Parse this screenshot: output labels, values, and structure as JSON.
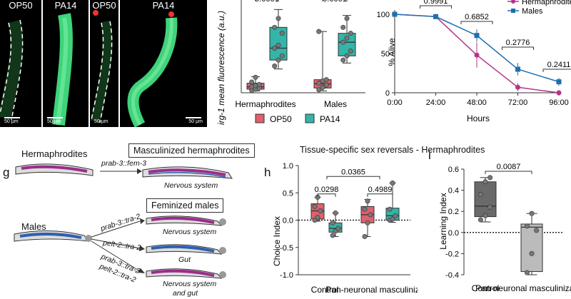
{
  "micrographs": {
    "tiles": [
      {
        "label": "OP50",
        "scale": "50 µm"
      },
      {
        "label": "PA14",
        "scale": "50 µm"
      },
      {
        "label": "OP50",
        "scale": "50 µm"
      },
      {
        "label": "PA14",
        "scale": "50 µm"
      }
    ]
  },
  "panel_g": {
    "letter": "g",
    "hermaphrodites": "Hermaphrodites",
    "masc_box": "Masculinized hermaphrodites",
    "arrow1": "prab-3::fem-3",
    "nervous_system": "Nervous system",
    "males": "Males",
    "fem_box": "Feminized males",
    "arrow2": "prab-3::tra-2",
    "arrow3": "pelt-2::tra-2",
    "arrow4a": "prab-3::tra-2",
    "arrow4b": "pelt-2::tra-2",
    "out2": "Nervous system",
    "out3": "Gut",
    "out4a": "Nervous system",
    "out4b": "and gut"
  },
  "panel_h_letter": "h",
  "panel_h_title": "Tissue-specific sex reversals - Hermaphrodites",
  "panel_i_letter": "i",
  "chart_data": [
    {
      "type": "box",
      "ylabel": "irg-1 mean fluorescence (a.u.)",
      "categories": [
        "Hermaphrodites",
        "Males"
      ],
      "legend": [
        "OP50",
        "PA14"
      ],
      "colors": [
        "#e0606e",
        "#33b5a8"
      ],
      "boxes": [
        {
          "cat": 0,
          "series": 0,
          "min": 3,
          "q1": 6,
          "med": 10,
          "q3": 16,
          "max": 27,
          "points": [
            4,
            6,
            8,
            10,
            12,
            14,
            18,
            26
          ]
        },
        {
          "cat": 0,
          "series": 1,
          "min": 40,
          "q1": 55,
          "med": 75,
          "q3": 110,
          "max": 140,
          "points": [
            45,
            55,
            62,
            75,
            80,
            100,
            110,
            125
          ]
        },
        {
          "cat": 1,
          "series": 0,
          "min": 3,
          "q1": 8,
          "med": 15,
          "q3": 22,
          "max": 103,
          "points": [
            5,
            9,
            13,
            16,
            20,
            22,
            103
          ]
        },
        {
          "cat": 1,
          "series": 1,
          "min": 50,
          "q1": 62,
          "med": 85,
          "q3": 100,
          "max": 130,
          "points": [
            55,
            62,
            70,
            85,
            92,
            100,
            110,
            125
          ]
        }
      ],
      "ylim": [
        0,
        150
      ],
      "pvalues_partial": [
        "0.0001",
        "0.0001"
      ]
    },
    {
      "type": "line",
      "ylabel": "% Alive",
      "xlabel": "Hours",
      "x": [
        "0:00",
        "24:00",
        "48:00",
        "72:00",
        "96:00"
      ],
      "yticks": [
        0,
        50,
        100
      ],
      "ylim": [
        0,
        100
      ],
      "series": [
        {
          "name": "Hermaphrodites",
          "values": [
            100,
            97,
            48,
            7,
            0
          ],
          "err": [
            0,
            1,
            16,
            5,
            0
          ],
          "color": "#b5338a"
        },
        {
          "name": "Males",
          "values": [
            100,
            97,
            73,
            30,
            14
          ],
          "err": [
            0,
            1,
            8,
            8,
            5
          ],
          "color": "#1f6fae"
        }
      ],
      "pvalues": [
        {
          "x": 1,
          "label": "0.9991"
        },
        {
          "x": 2,
          "label": "0.6852"
        },
        {
          "x": 3,
          "label": "0.2776"
        },
        {
          "x": 4,
          "label": "0.2411"
        }
      ]
    },
    {
      "type": "box",
      "ylabel": "Choice Index",
      "categories": [
        "Control",
        "Pan-neuronal masculinization"
      ],
      "colors": [
        "#e0606e",
        "#33b5a8"
      ],
      "yticks": [
        "-1.0",
        "-0.5",
        "0.0",
        "0.5",
        "1.0"
      ],
      "ylim": [
        -1,
        1
      ],
      "boxes": [
        {
          "cat": 0,
          "series": 0,
          "min": -0.02,
          "q1": 0.02,
          "med": 0.17,
          "q3": 0.3,
          "max": 0.42,
          "points": [
            0.0,
            0.05,
            0.17,
            0.25,
            0.42
          ]
        },
        {
          "cat": 0,
          "series": 1,
          "min": -0.3,
          "q1": -0.22,
          "med": -0.15,
          "q3": -0.05,
          "max": 0.13,
          "points": [
            -0.28,
            -0.2,
            -0.15,
            -0.05,
            0.13
          ]
        },
        {
          "cat": 1,
          "series": 0,
          "min": -0.3,
          "q1": -0.05,
          "med": 0.1,
          "q3": 0.25,
          "max": 0.38,
          "points": [
            -0.3,
            -0.05,
            0.1,
            0.2,
            0.35
          ]
        },
        {
          "cat": 1,
          "series": 1,
          "min": -0.04,
          "q1": 0.0,
          "med": 0.08,
          "q3": 0.22,
          "max": 0.68,
          "points": [
            0.0,
            0.02,
            0.08,
            0.2,
            0.68
          ]
        }
      ],
      "pvalues": [
        "0.0298",
        "0.0365",
        "0.4989"
      ]
    },
    {
      "type": "box",
      "ylabel": "Learning Index",
      "categories": [
        "Control",
        "Pan-neuronal masculinization"
      ],
      "colors": [
        "#6a6a6a",
        "#bbbbbb"
      ],
      "yticks": [
        "-0.4",
        "-0.2",
        "0.0",
        "0.2",
        "0.4",
        "0.6"
      ],
      "ylim": [
        -0.4,
        0.6
      ],
      "boxes": [
        {
          "cat": 0,
          "series": 0,
          "min": 0.1,
          "q1": 0.15,
          "med": 0.25,
          "q3": 0.48,
          "max": 0.52,
          "points": [
            0.12,
            0.16,
            0.24,
            0.36,
            0.48,
            0.52
          ]
        },
        {
          "cat": 1,
          "series": 0,
          "min": -0.4,
          "q1": -0.37,
          "med": 0.05,
          "q3": 0.08,
          "max": 0.18,
          "points": [
            -0.38,
            -0.2,
            0.02,
            0.06,
            0.18
          ]
        }
      ],
      "pvalue": "0.0087"
    }
  ]
}
